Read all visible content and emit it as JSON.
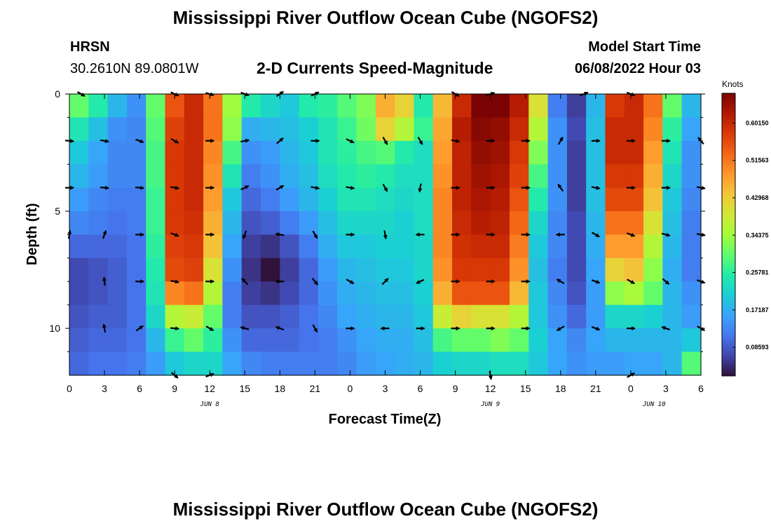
{
  "page": {
    "title": "Mississippi River Outflow Ocean Cube (NGOFS2)",
    "station_name": "HRSN",
    "station_coords": "30.2610N  89.0801W",
    "plot_subtitle": "2-D Currents Speed-Magnitude",
    "model_start_label": "Model Start Time",
    "model_start_value": "06/08/2022 Hour 03",
    "colorbar_unit": "Knots",
    "second_title": "Mississippi River Outflow Ocean Cube (NGOFS2)"
  },
  "chart_data": {
    "type": "heatmap",
    "xlabel": "Forecast Time(Z)",
    "ylabel": "Depth (ft)",
    "x_tick_labels": [
      "0",
      "3",
      "6",
      "9",
      "12",
      "15",
      "18",
      "21",
      "0",
      "3",
      "6",
      "9",
      "12",
      "15",
      "18",
      "21",
      "0",
      "3",
      "6"
    ],
    "x_date_labels": [
      {
        "label": "JUN 8",
        "at_hour": 12
      },
      {
        "label": "JUN 9",
        "at_hour": 36
      },
      {
        "label": "JUN 10",
        "at_hour": 50
      }
    ],
    "x_range_hours": [
      0,
      54
    ],
    "y_ticks": [
      0,
      5,
      10
    ],
    "y_range_ft": [
      0,
      12
    ],
    "depth_layers_ft": [
      0,
      1,
      2,
      3,
      4,
      5,
      6,
      7,
      8,
      9,
      10,
      11
    ],
    "color_scale": {
      "min": 0.02,
      "max": 0.67,
      "tick_labels": [
        "0.60150",
        "0.51563",
        "0.42968",
        "0.34375",
        "0.25781",
        "0.17187",
        "0.08593"
      ],
      "tick_values": [
        0.6015,
        0.51563,
        0.42968,
        0.34375,
        0.25781,
        0.17187,
        0.08593
      ]
    },
    "speed_grid_kn": [
      [
        0.3,
        0.25,
        0.18,
        0.14,
        0.3,
        0.55,
        0.6,
        0.52,
        0.34,
        0.25,
        0.22,
        0.2,
        0.25,
        0.26,
        0.29,
        0.32,
        0.46,
        0.42,
        0.25,
        0.45,
        0.6,
        0.67,
        0.67,
        0.62,
        0.4,
        0.12,
        0.06,
        0.18,
        0.58,
        0.6,
        0.52,
        0.3,
        0.18
      ],
      [
        0.24,
        0.19,
        0.14,
        0.13,
        0.29,
        0.57,
        0.6,
        0.52,
        0.33,
        0.17,
        0.18,
        0.19,
        0.21,
        0.24,
        0.27,
        0.31,
        0.42,
        0.36,
        0.27,
        0.47,
        0.62,
        0.66,
        0.65,
        0.6,
        0.36,
        0.14,
        0.07,
        0.19,
        0.6,
        0.6,
        0.5,
        0.26,
        0.16
      ],
      [
        0.2,
        0.16,
        0.13,
        0.13,
        0.28,
        0.58,
        0.6,
        0.5,
        0.28,
        0.14,
        0.15,
        0.18,
        0.2,
        0.24,
        0.26,
        0.28,
        0.29,
        0.25,
        0.23,
        0.48,
        0.61,
        0.65,
        0.64,
        0.58,
        0.32,
        0.14,
        0.06,
        0.19,
        0.6,
        0.6,
        0.48,
        0.24,
        0.14
      ],
      [
        0.18,
        0.15,
        0.13,
        0.13,
        0.28,
        0.58,
        0.6,
        0.49,
        0.24,
        0.12,
        0.14,
        0.17,
        0.19,
        0.23,
        0.25,
        0.26,
        0.25,
        0.23,
        0.23,
        0.49,
        0.61,
        0.64,
        0.63,
        0.57,
        0.28,
        0.14,
        0.06,
        0.19,
        0.58,
        0.58,
        0.46,
        0.22,
        0.14
      ],
      [
        0.15,
        0.13,
        0.12,
        0.12,
        0.27,
        0.58,
        0.6,
        0.48,
        0.2,
        0.1,
        0.12,
        0.15,
        0.18,
        0.21,
        0.24,
        0.24,
        0.23,
        0.22,
        0.23,
        0.5,
        0.61,
        0.63,
        0.62,
        0.55,
        0.25,
        0.14,
        0.06,
        0.19,
        0.56,
        0.56,
        0.44,
        0.2,
        0.13
      ],
      [
        0.13,
        0.12,
        0.11,
        0.12,
        0.27,
        0.58,
        0.59,
        0.46,
        0.18,
        0.08,
        0.09,
        0.12,
        0.15,
        0.19,
        0.22,
        0.22,
        0.22,
        0.21,
        0.23,
        0.5,
        0.6,
        0.62,
        0.61,
        0.53,
        0.22,
        0.13,
        0.07,
        0.18,
        0.52,
        0.52,
        0.4,
        0.19,
        0.12
      ],
      [
        0.1,
        0.1,
        0.1,
        0.11,
        0.26,
        0.57,
        0.58,
        0.44,
        0.16,
        0.06,
        0.05,
        0.08,
        0.12,
        0.17,
        0.2,
        0.2,
        0.21,
        0.21,
        0.22,
        0.5,
        0.59,
        0.6,
        0.6,
        0.51,
        0.2,
        0.13,
        0.07,
        0.17,
        0.48,
        0.48,
        0.36,
        0.18,
        0.12
      ],
      [
        0.07,
        0.08,
        0.09,
        0.11,
        0.25,
        0.56,
        0.57,
        0.4,
        0.14,
        0.05,
        0.02,
        0.06,
        0.1,
        0.15,
        0.18,
        0.19,
        0.2,
        0.2,
        0.22,
        0.49,
        0.58,
        0.58,
        0.58,
        0.49,
        0.19,
        0.12,
        0.07,
        0.16,
        0.42,
        0.44,
        0.33,
        0.17,
        0.12
      ],
      [
        0.07,
        0.08,
        0.09,
        0.11,
        0.24,
        0.5,
        0.52,
        0.36,
        0.12,
        0.06,
        0.05,
        0.07,
        0.1,
        0.14,
        0.17,
        0.18,
        0.19,
        0.19,
        0.21,
        0.46,
        0.55,
        0.55,
        0.55,
        0.45,
        0.2,
        0.13,
        0.08,
        0.15,
        0.33,
        0.35,
        0.3,
        0.18,
        0.14
      ],
      [
        0.08,
        0.09,
        0.09,
        0.11,
        0.22,
        0.36,
        0.38,
        0.3,
        0.12,
        0.08,
        0.08,
        0.09,
        0.11,
        0.13,
        0.16,
        0.17,
        0.18,
        0.18,
        0.2,
        0.38,
        0.42,
        0.4,
        0.4,
        0.36,
        0.2,
        0.14,
        0.1,
        0.15,
        0.22,
        0.22,
        0.21,
        0.18,
        0.15
      ],
      [
        0.09,
        0.1,
        0.1,
        0.11,
        0.18,
        0.27,
        0.3,
        0.26,
        0.14,
        0.1,
        0.1,
        0.1,
        0.11,
        0.12,
        0.14,
        0.16,
        0.17,
        0.17,
        0.19,
        0.28,
        0.3,
        0.3,
        0.32,
        0.3,
        0.21,
        0.16,
        0.13,
        0.16,
        0.18,
        0.18,
        0.18,
        0.18,
        0.2
      ],
      [
        0.1,
        0.11,
        0.11,
        0.12,
        0.15,
        0.2,
        0.22,
        0.22,
        0.16,
        0.13,
        0.12,
        0.12,
        0.12,
        0.12,
        0.13,
        0.15,
        0.16,
        0.17,
        0.18,
        0.21,
        0.22,
        0.22,
        0.23,
        0.23,
        0.2,
        0.16,
        0.14,
        0.15,
        0.15,
        0.16,
        0.16,
        0.18,
        0.29
      ]
    ],
    "vectors": [
      {
        "hour": 1,
        "depth": 0,
        "angle": -30
      },
      {
        "hour": 9,
        "depth": 0,
        "angle": -25
      },
      {
        "hour": 12,
        "depth": 0,
        "angle": -15
      },
      {
        "hour": 15,
        "depth": 0,
        "angle": -20
      },
      {
        "hour": 18,
        "depth": 0,
        "angle": 35
      },
      {
        "hour": 21,
        "depth": 0,
        "angle": 25
      },
      {
        "hour": 33,
        "depth": 0,
        "angle": -30
      },
      {
        "hour": 36,
        "depth": 0,
        "angle": 15
      },
      {
        "hour": 44,
        "depth": 0,
        "angle": 20
      },
      {
        "hour": 48,
        "depth": 0,
        "angle": -20
      },
      {
        "hour": 0,
        "depth": 2,
        "angle": -5
      },
      {
        "hour": 3,
        "depth": 2,
        "angle": -10
      },
      {
        "hour": 6,
        "depth": 2,
        "angle": -20
      },
      {
        "hour": 9,
        "depth": 2,
        "angle": -30
      },
      {
        "hour": 12,
        "depth": 2,
        "angle": 0
      },
      {
        "hour": 15,
        "depth": 2,
        "angle": 10
      },
      {
        "hour": 18,
        "depth": 2,
        "angle": 40
      },
      {
        "hour": 21,
        "depth": 2,
        "angle": 0
      },
      {
        "hour": 24,
        "depth": 2,
        "angle": -25
      },
      {
        "hour": 27,
        "depth": 2,
        "angle": -60
      },
      {
        "hour": 30,
        "depth": 2,
        "angle": -60
      },
      {
        "hour": 33,
        "depth": 2,
        "angle": -10
      },
      {
        "hour": 36,
        "depth": 2,
        "angle": 0
      },
      {
        "hour": 39,
        "depth": 2,
        "angle": 0
      },
      {
        "hour": 42,
        "depth": 2,
        "angle": 60
      },
      {
        "hour": 45,
        "depth": 2,
        "angle": 0
      },
      {
        "hour": 48,
        "depth": 2,
        "angle": 0
      },
      {
        "hour": 51,
        "depth": 2,
        "angle": 0
      },
      {
        "hour": 54,
        "depth": 2,
        "angle": 130
      },
      {
        "hour": 0,
        "depth": 4,
        "angle": 0
      },
      {
        "hour": 3,
        "depth": 4,
        "angle": -5
      },
      {
        "hour": 6,
        "depth": 4,
        "angle": -5
      },
      {
        "hour": 9,
        "depth": 4,
        "angle": -10
      },
      {
        "hour": 12,
        "depth": 4,
        "angle": 0
      },
      {
        "hour": 15,
        "depth": 4,
        "angle": 25
      },
      {
        "hour": 18,
        "depth": 4,
        "angle": 30
      },
      {
        "hour": 21,
        "depth": 4,
        "angle": -10
      },
      {
        "hour": 24,
        "depth": 4,
        "angle": -10
      },
      {
        "hour": 27,
        "depth": 4,
        "angle": -60
      },
      {
        "hour": 30,
        "depth": 4,
        "angle": -100
      },
      {
        "hour": 33,
        "depth": 4,
        "angle": 0
      },
      {
        "hour": 36,
        "depth": 4,
        "angle": 0
      },
      {
        "hour": 39,
        "depth": 4,
        "angle": 0
      },
      {
        "hour": 42,
        "depth": 4,
        "angle": 125
      },
      {
        "hour": 45,
        "depth": 4,
        "angle": -10
      },
      {
        "hour": 48,
        "depth": 4,
        "angle": 0
      },
      {
        "hour": 51,
        "depth": 4,
        "angle": 0
      },
      {
        "hour": 54,
        "depth": 4,
        "angle": -10
      },
      {
        "hour": 0,
        "depth": 6,
        "angle": 80
      },
      {
        "hour": 3,
        "depth": 6,
        "angle": 70
      },
      {
        "hour": 6,
        "depth": 6,
        "angle": 0
      },
      {
        "hour": 9,
        "depth": 6,
        "angle": -20
      },
      {
        "hour": 12,
        "depth": 6,
        "angle": 0
      },
      {
        "hour": 15,
        "depth": 6,
        "angle": -110
      },
      {
        "hour": 18,
        "depth": 6,
        "angle": 170
      },
      {
        "hour": 21,
        "depth": 6,
        "angle": -60
      },
      {
        "hour": 24,
        "depth": 6,
        "angle": 0
      },
      {
        "hour": 27,
        "depth": 6,
        "angle": -80
      },
      {
        "hour": 30,
        "depth": 6,
        "angle": 180
      },
      {
        "hour": 33,
        "depth": 6,
        "angle": 0
      },
      {
        "hour": 36,
        "depth": 6,
        "angle": 0
      },
      {
        "hour": 39,
        "depth": 6,
        "angle": 0
      },
      {
        "hour": 42,
        "depth": 6,
        "angle": 180
      },
      {
        "hour": 45,
        "depth": 6,
        "angle": -30
      },
      {
        "hour": 48,
        "depth": 6,
        "angle": -20
      },
      {
        "hour": 51,
        "depth": 6,
        "angle": -15
      },
      {
        "hour": 54,
        "depth": 6,
        "angle": -10
      },
      {
        "hour": 3,
        "depth": 8,
        "angle": 95
      },
      {
        "hour": 6,
        "depth": 8,
        "angle": 0
      },
      {
        "hour": 9,
        "depth": 8,
        "angle": -10
      },
      {
        "hour": 12,
        "depth": 8,
        "angle": 0
      },
      {
        "hour": 15,
        "depth": 8,
        "angle": 135
      },
      {
        "hour": 18,
        "depth": 8,
        "angle": 180
      },
      {
        "hour": 21,
        "depth": 8,
        "angle": -50
      },
      {
        "hour": 24,
        "depth": 8,
        "angle": -30
      },
      {
        "hour": 27,
        "depth": 8,
        "angle": 45
      },
      {
        "hour": 30,
        "depth": 8,
        "angle": -155
      },
      {
        "hour": 33,
        "depth": 8,
        "angle": 0
      },
      {
        "hour": 36,
        "depth": 8,
        "angle": 0
      },
      {
        "hour": 39,
        "depth": 8,
        "angle": 0
      },
      {
        "hour": 42,
        "depth": 8,
        "angle": 150
      },
      {
        "hour": 45,
        "depth": 8,
        "angle": -20
      },
      {
        "hour": 48,
        "depth": 8,
        "angle": -30
      },
      {
        "hour": 51,
        "depth": 8,
        "angle": -40
      },
      {
        "hour": 54,
        "depth": 8,
        "angle": -20
      },
      {
        "hour": 3,
        "depth": 10,
        "angle": 100
      },
      {
        "hour": 6,
        "depth": 10,
        "angle": 35
      },
      {
        "hour": 9,
        "depth": 10,
        "angle": -5
      },
      {
        "hour": 12,
        "depth": 10,
        "angle": -30
      },
      {
        "hour": 15,
        "depth": 10,
        "angle": 165
      },
      {
        "hour": 18,
        "depth": 10,
        "angle": 160
      },
      {
        "hour": 21,
        "depth": 10,
        "angle": -60
      },
      {
        "hour": 24,
        "depth": 10,
        "angle": 0
      },
      {
        "hour": 27,
        "depth": 10,
        "angle": 180
      },
      {
        "hour": 30,
        "depth": 10,
        "angle": 0
      },
      {
        "hour": 33,
        "depth": 10,
        "angle": 0
      },
      {
        "hour": 36,
        "depth": 10,
        "angle": 0
      },
      {
        "hour": 39,
        "depth": 10,
        "angle": 0
      },
      {
        "hour": 42,
        "depth": 10,
        "angle": -150
      },
      {
        "hour": 45,
        "depth": 10,
        "angle": -20
      },
      {
        "hour": 48,
        "depth": 10,
        "angle": 0
      },
      {
        "hour": 51,
        "depth": 10,
        "angle": 160
      },
      {
        "hour": 54,
        "depth": 10,
        "angle": -30
      },
      {
        "hour": 9,
        "depth": 12,
        "angle": -40
      },
      {
        "hour": 12,
        "depth": 12,
        "angle": 20
      },
      {
        "hour": 36,
        "depth": 12,
        "angle": -80
      },
      {
        "hour": 48,
        "depth": 12,
        "angle": 30
      }
    ]
  }
}
